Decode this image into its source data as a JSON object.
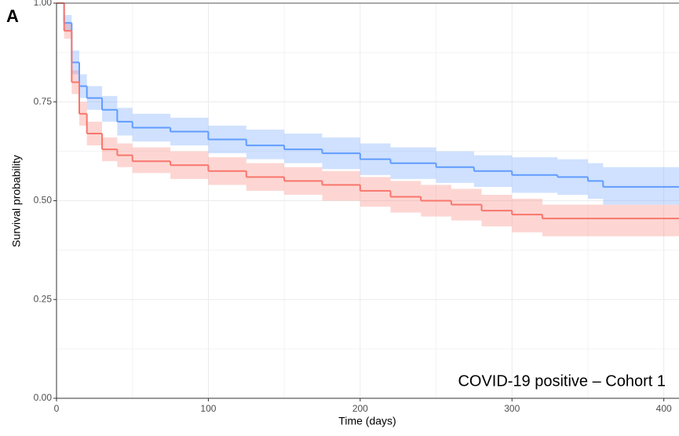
{
  "chart_data": {
    "type": "survival",
    "panel_label": "A",
    "annotation": "COVID-19 positive – Cohort 1",
    "x_label": "Time (days)",
    "y_label": "Survival probability",
    "xlim": [
      0,
      410
    ],
    "xticks": [
      0,
      100,
      200,
      300,
      400
    ],
    "ylim": [
      0,
      1
    ],
    "yticks": [
      {
        "value": 0,
        "label": "0.00"
      },
      {
        "value": 0.25,
        "label": "0.25"
      },
      {
        "value": 0.5,
        "label": "0.50"
      },
      {
        "value": 0.75,
        "label": "0.75"
      },
      {
        "value": 1,
        "label": "1.00"
      }
    ],
    "grid": true,
    "series": [
      {
        "color": "#619cff",
        "x": [
          0,
          5,
          10,
          15,
          20,
          30,
          40,
          50,
          75,
          100,
          125,
          150,
          175,
          200,
          220,
          250,
          275,
          300,
          330,
          350,
          360
        ],
        "values": [
          1.0,
          0.95,
          0.85,
          0.79,
          0.76,
          0.73,
          0.7,
          0.685,
          0.675,
          0.655,
          0.64,
          0.63,
          0.62,
          0.605,
          0.595,
          0.585,
          0.575,
          0.565,
          0.56,
          0.55,
          0.535
        ],
        "lower": [
          1.0,
          0.93,
          0.82,
          0.76,
          0.73,
          0.7,
          0.665,
          0.65,
          0.64,
          0.62,
          0.605,
          0.595,
          0.58,
          0.565,
          0.555,
          0.545,
          0.535,
          0.52,
          0.515,
          0.505,
          0.49
        ],
        "upper": [
          1.0,
          0.97,
          0.88,
          0.82,
          0.79,
          0.765,
          0.735,
          0.72,
          0.71,
          0.69,
          0.68,
          0.67,
          0.66,
          0.645,
          0.635,
          0.625,
          0.615,
          0.61,
          0.605,
          0.595,
          0.585
        ]
      },
      {
        "color": "#f8766d",
        "x": [
          0,
          5,
          10,
          15,
          20,
          30,
          40,
          50,
          75,
          100,
          125,
          150,
          175,
          200,
          220,
          240,
          260,
          280,
          300,
          320
        ],
        "values": [
          1.0,
          0.93,
          0.8,
          0.72,
          0.67,
          0.63,
          0.615,
          0.6,
          0.59,
          0.575,
          0.56,
          0.55,
          0.54,
          0.525,
          0.51,
          0.5,
          0.49,
          0.475,
          0.465,
          0.455
        ],
        "lower": [
          1.0,
          0.91,
          0.77,
          0.69,
          0.64,
          0.6,
          0.585,
          0.57,
          0.555,
          0.54,
          0.525,
          0.515,
          0.5,
          0.485,
          0.47,
          0.46,
          0.45,
          0.435,
          0.42,
          0.41
        ],
        "upper": [
          1.0,
          0.95,
          0.83,
          0.75,
          0.7,
          0.66,
          0.645,
          0.635,
          0.625,
          0.61,
          0.595,
          0.585,
          0.575,
          0.56,
          0.55,
          0.54,
          0.53,
          0.515,
          0.505,
          0.49
        ]
      }
    ]
  }
}
